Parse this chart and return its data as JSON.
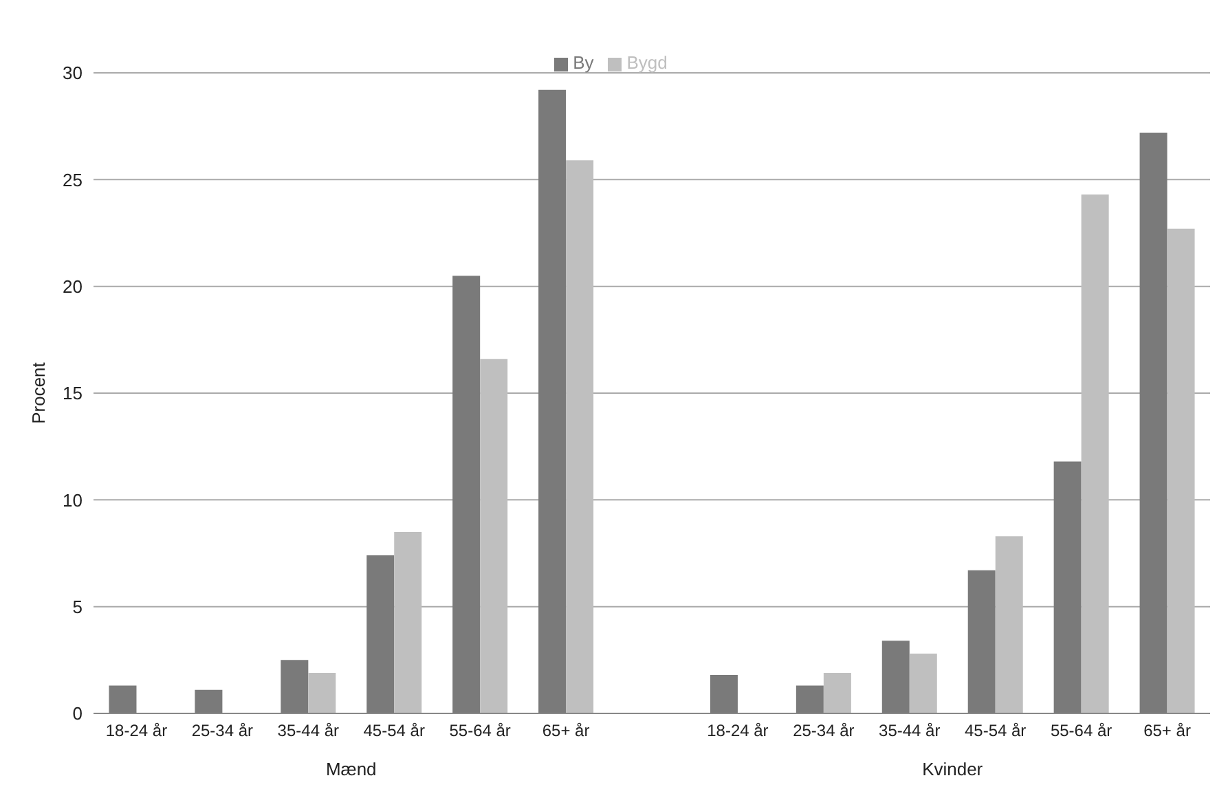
{
  "chart_data": {
    "type": "bar",
    "ylabel": "Procent",
    "categories": [
      "18-24 år",
      "25-34 år",
      "35-44 år",
      "45-54 år",
      "55-64 år",
      "65+ år",
      null,
      "18-24 år",
      "25-34 år",
      "35-44 år",
      "45-54 år",
      "55-64 år",
      "65+ år"
    ],
    "series": [
      {
        "name": "By",
        "color": "#7a7a7a",
        "values": [
          1.3,
          1.1,
          2.5,
          7.4,
          20.5,
          29.2,
          null,
          1.8,
          1.3,
          3.4,
          6.7,
          11.8,
          27.2
        ]
      },
      {
        "name": "Bygd",
        "color": "#bfbfbf",
        "values": [
          0,
          0,
          1.9,
          8.5,
          16.6,
          25.9,
          null,
          0,
          1.9,
          2.8,
          8.3,
          24.3,
          22.7
        ]
      }
    ],
    "ylim": [
      0,
      30
    ],
    "yticks": [
      0,
      5,
      10,
      15,
      20,
      25,
      30
    ],
    "grid": "y",
    "legend": "top",
    "annotations": [
      "Mænd",
      "Kvinder"
    ]
  }
}
